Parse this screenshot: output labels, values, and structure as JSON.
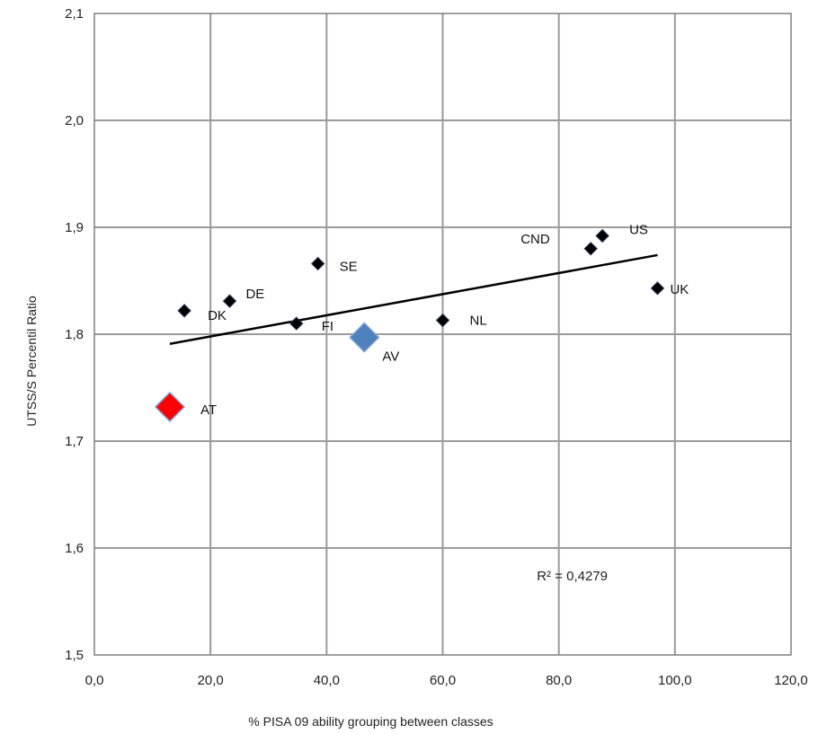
{
  "chart_data": {
    "type": "scatter",
    "xlabel": "% PISA 09 ability grouping between classes",
    "ylabel": "UTSS/S Percentil Ratio",
    "xlim": [
      0,
      120
    ],
    "ylim": [
      1.5,
      2.1
    ],
    "x_ticks": [
      "0,0",
      "20,0",
      "40,0",
      "60,0",
      "80,0",
      "100,0",
      "120,0"
    ],
    "y_ticks": [
      "1,5",
      "1,6",
      "1,7",
      "1,8",
      "1,9",
      "2,0",
      "2,1"
    ],
    "grid": true,
    "points": [
      {
        "label": "DK",
        "x": 15.5,
        "y": 1.822,
        "color": "#000000",
        "size": "small"
      },
      {
        "label": "DE",
        "x": 23.3,
        "y": 1.831,
        "color": "#000000",
        "size": "small"
      },
      {
        "label": "SE",
        "x": 38.5,
        "y": 1.866,
        "color": "#000000",
        "size": "small"
      },
      {
        "label": "FI",
        "x": 34.8,
        "y": 1.81,
        "color": "#000000",
        "size": "small"
      },
      {
        "label": "NL",
        "x": 60.0,
        "y": 1.813,
        "color": "#000000",
        "size": "small"
      },
      {
        "label": "CND",
        "x": 85.5,
        "y": 1.88,
        "color": "#000000",
        "size": "small"
      },
      {
        "label": "US",
        "x": 87.5,
        "y": 1.892,
        "color": "#000000",
        "size": "small"
      },
      {
        "label": "UK",
        "x": 97.0,
        "y": 1.843,
        "color": "#000000",
        "size": "small"
      },
      {
        "label": "AV",
        "x": 46.5,
        "y": 1.797,
        "color": "#4f81bd",
        "size": "large"
      },
      {
        "label": "AT",
        "x": 13.0,
        "y": 1.732,
        "color": "#ff0000",
        "size": "large"
      }
    ],
    "trendline": {
      "x": [
        13,
        97
      ],
      "y": [
        1.791,
        1.874
      ]
    },
    "annotation": "R² = 0,4279",
    "annotation_pos": {
      "x": 85.5,
      "y": 1.61
    }
  }
}
